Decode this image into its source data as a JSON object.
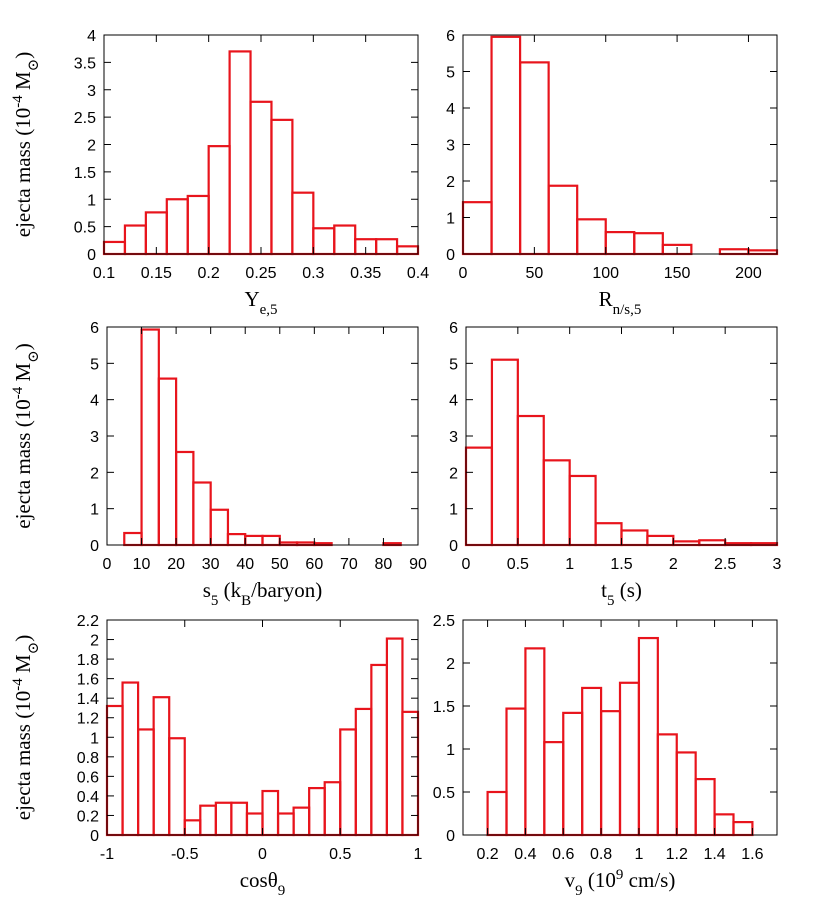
{
  "chart_data": [
    {
      "type": "histogram",
      "color": "#e8141c",
      "ylabel": [
        {
          "text": "ejecta mass (10"
        },
        {
          "sup": "-4"
        },
        {
          "text": " M"
        },
        {
          "sub": "⊙"
        },
        {
          "text": ")"
        }
      ],
      "xlabel": [
        {
          "text": "Y"
        },
        {
          "sub": "e,5"
        }
      ],
      "bins": [
        0.1,
        0.12,
        0.14,
        0.16,
        0.18,
        0.2,
        0.22,
        0.24,
        0.26,
        0.28,
        0.3,
        0.32,
        0.34,
        0.36,
        0.38,
        0.4
      ],
      "values": [
        0.22,
        0.52,
        0.76,
        1.0,
        1.06,
        1.97,
        3.7,
        2.78,
        2.45,
        1.12,
        0.47,
        0.52,
        0.27,
        0.27,
        0.14
      ],
      "xlim": [
        0.1,
        0.4
      ],
      "xticks": [
        0.1,
        0.15,
        0.2,
        0.25,
        0.3,
        0.35,
        0.4
      ],
      "ylim": [
        0,
        4
      ],
      "yticks": [
        0,
        0.5,
        1,
        1.5,
        2,
        2.5,
        3,
        3.5,
        4
      ]
    },
    {
      "type": "histogram",
      "color": "#e8141c",
      "xlabel": [
        {
          "text": "R"
        },
        {
          "sub": "n/s,5"
        }
      ],
      "bins": [
        0,
        20,
        40,
        60,
        80,
        100,
        120,
        140,
        160,
        180,
        200,
        220
      ],
      "values": [
        1.42,
        5.95,
        5.25,
        1.87,
        0.95,
        0.6,
        0.57,
        0.25,
        0,
        0.13,
        0.1
      ],
      "xlim": [
        0,
        220
      ],
      "xticks": [
        0,
        50,
        100,
        150,
        200
      ],
      "ylim": [
        0,
        6
      ],
      "yticks": [
        0,
        1,
        2,
        3,
        4,
        5,
        6
      ]
    },
    {
      "type": "histogram",
      "color": "#e8141c",
      "ylabel": [
        {
          "text": "ejecta mass (10"
        },
        {
          "sup": "-4"
        },
        {
          "text": " M"
        },
        {
          "sub": "⊙"
        },
        {
          "text": ")"
        }
      ],
      "xlabel": [
        {
          "text": "s"
        },
        {
          "sub": "5"
        },
        {
          "text": " (k"
        },
        {
          "sub": "B"
        },
        {
          "text": "/baryon)"
        }
      ],
      "bins": [
        0,
        5,
        10,
        15,
        20,
        25,
        30,
        35,
        40,
        45,
        50,
        55,
        60,
        65,
        70,
        75,
        80,
        85,
        90
      ],
      "values": [
        0,
        0.33,
        5.93,
        4.58,
        2.56,
        1.72,
        0.97,
        0.3,
        0.25,
        0.25,
        0.07,
        0.07,
        0.05,
        0,
        0,
        0,
        0.05,
        0
      ],
      "xlim": [
        0,
        90
      ],
      "xticks": [
        0,
        10,
        20,
        30,
        40,
        50,
        60,
        70,
        80,
        90
      ],
      "ylim": [
        0,
        6
      ],
      "yticks": [
        0,
        1,
        2,
        3,
        4,
        5,
        6
      ]
    },
    {
      "type": "histogram",
      "color": "#e8141c",
      "xlabel": [
        {
          "text": "t"
        },
        {
          "sub": "5"
        },
        {
          "text": " (s)"
        }
      ],
      "bins": [
        0,
        0.25,
        0.5,
        0.75,
        1,
        1.25,
        1.5,
        1.75,
        2,
        2.25,
        2.5,
        2.75,
        3
      ],
      "values": [
        2.68,
        5.1,
        3.55,
        2.33,
        1.9,
        0.6,
        0.4,
        0.25,
        0.1,
        0.13,
        0.05,
        0.05
      ],
      "xlim": [
        0,
        3
      ],
      "xticks": [
        0,
        0.5,
        1,
        1.5,
        2,
        2.5,
        3
      ],
      "ylim": [
        0,
        6
      ],
      "yticks": [
        0,
        1,
        2,
        3,
        4,
        5,
        6
      ]
    },
    {
      "type": "histogram",
      "color": "#e8141c",
      "ylabel": [
        {
          "text": "ejecta mass (10"
        },
        {
          "sup": "-4"
        },
        {
          "text": " M"
        },
        {
          "sub": "⊙"
        },
        {
          "text": ")"
        }
      ],
      "xlabel": [
        {
          "text": "cosθ"
        },
        {
          "sub": "9"
        }
      ],
      "bins": [
        -1,
        -0.9,
        -0.8,
        -0.7,
        -0.6,
        -0.5,
        -0.4,
        -0.3,
        -0.2,
        -0.1,
        0,
        0.1,
        0.2,
        0.3,
        0.4,
        0.5,
        0.6,
        0.7,
        0.8,
        0.9,
        1
      ],
      "values": [
        1.32,
        1.56,
        1.08,
        1.41,
        0.99,
        0.15,
        0.3,
        0.33,
        0.33,
        0.22,
        0.45,
        0.22,
        0.28,
        0.48,
        0.54,
        1.08,
        1.29,
        1.74,
        2.01,
        1.26
      ],
      "xlim": [
        -1,
        1
      ],
      "xticks": [
        -1,
        -0.5,
        0,
        0.5,
        1
      ],
      "ylim": [
        0,
        2.2
      ],
      "yticks": [
        0,
        0.2,
        0.4,
        0.6,
        0.8,
        1,
        1.2,
        1.4,
        1.6,
        1.8,
        2,
        2.2
      ]
    },
    {
      "type": "histogram",
      "color": "#e8141c",
      "xlabel": [
        {
          "text": "v"
        },
        {
          "sub": "9"
        },
        {
          "text": " (10"
        },
        {
          "sup": "9"
        },
        {
          "text": " cm/s)"
        }
      ],
      "bins": [
        0.2,
        0.3,
        0.4,
        0.5,
        0.6,
        0.7,
        0.8,
        0.9,
        1.0,
        1.1,
        1.2,
        1.3,
        1.4,
        1.5,
        1.6
      ],
      "values": [
        0.5,
        1.47,
        2.17,
        1.08,
        1.42,
        1.71,
        1.44,
        1.77,
        2.29,
        1.17,
        0.96,
        0.65,
        0.24,
        0.15
      ],
      "xlim": [
        0.07,
        1.73
      ],
      "xticks": [
        0.2,
        0.4,
        0.6,
        0.8,
        1,
        1.2,
        1.4,
        1.6
      ],
      "ylim": [
        0,
        2.5
      ],
      "yticks": [
        0,
        0.5,
        1,
        1.5,
        2,
        2.5
      ]
    }
  ]
}
